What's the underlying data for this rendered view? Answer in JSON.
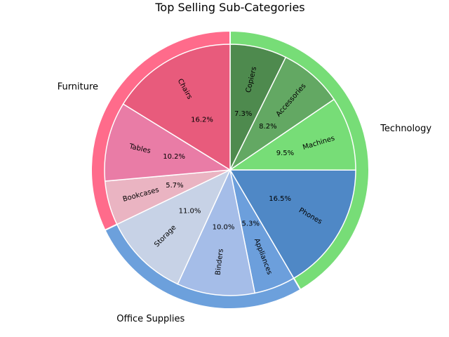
{
  "chart_data": {
    "type": "pie",
    "title": "Top Selling Sub-Categories",
    "categories": [
      {
        "name": "Technology",
        "color": "#77dd77"
      },
      {
        "name": "Office Supplies",
        "color": "#6ca0dc"
      },
      {
        "name": "Furniture",
        "color": "#ff6b8b"
      }
    ],
    "slices": [
      {
        "label": "Copiers",
        "percent": 7.3,
        "category": "Technology",
        "color": "#4e8a4e"
      },
      {
        "label": "Accessories",
        "percent": 8.2,
        "category": "Technology",
        "color": "#63a863"
      },
      {
        "label": "Machines",
        "percent": 9.5,
        "category": "Technology",
        "color": "#77dd77"
      },
      {
        "label": "Phones",
        "percent": 16.5,
        "category": "Technology",
        "color": "#4f88c6"
      },
      {
        "label": "Appliances",
        "percent": 5.3,
        "category": "Office Supplies",
        "color": "#6c9fdc"
      },
      {
        "label": "Binders",
        "percent": 10.0,
        "category": "Office Supplies",
        "color": "#a5bde8"
      },
      {
        "label": "Storage",
        "percent": 11.0,
        "category": "Office Supplies",
        "color": "#c7d2e6"
      },
      {
        "label": "Bookcases",
        "percent": 5.7,
        "category": "Furniture",
        "color": "#eab4c2"
      },
      {
        "label": "Tables",
        "percent": 10.2,
        "category": "Furniture",
        "color": "#e97ca6"
      },
      {
        "label": "Chairs",
        "percent": 16.2,
        "category": "Furniture",
        "color": "#e85b7c"
      }
    ]
  }
}
